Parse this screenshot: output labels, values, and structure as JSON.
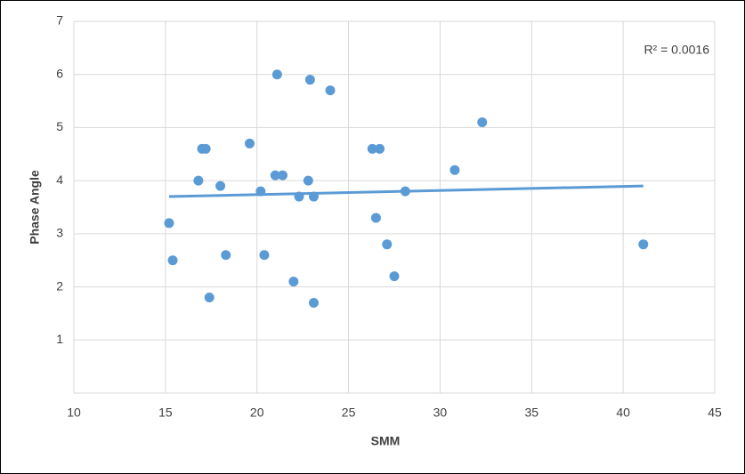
{
  "chart_data": {
    "type": "scatter",
    "x_label": "SMM",
    "y_label": "Phase Angle",
    "annotation": "R² = 0.0016",
    "color": "#5b9bd5",
    "x": [
      15.2,
      15.4,
      16.8,
      17.0,
      17.2,
      17.4,
      18.0,
      18.3,
      19.6,
      20.2,
      20.4,
      21.0,
      21.1,
      21.4,
      22.0,
      22.3,
      22.8,
      22.9,
      23.1,
      23.1,
      24.0,
      26.3,
      26.5,
      26.7,
      27.1,
      27.5,
      28.1,
      30.8,
      32.3,
      41.1
    ],
    "values": [
      3.2,
      2.5,
      4.0,
      4.6,
      4.6,
      1.8,
      3.9,
      2.6,
      4.7,
      3.8,
      2.6,
      4.1,
      6.0,
      4.1,
      2.1,
      3.7,
      4.0,
      5.9,
      3.7,
      1.7,
      5.7,
      4.6,
      3.3,
      4.6,
      2.8,
      2.2,
      3.8,
      4.2,
      5.1,
      2.8
    ],
    "trendline": {
      "x": [
        15.2,
        41.1
      ],
      "y": [
        3.7,
        3.9
      ]
    },
    "xlim": [
      10,
      45
    ],
    "xticks": [
      10,
      15,
      20,
      25,
      30,
      35,
      40,
      45
    ],
    "ylim": [
      0,
      7
    ],
    "yticks": [
      1,
      2,
      3,
      4,
      5,
      6,
      7
    ],
    "grid": true
  }
}
